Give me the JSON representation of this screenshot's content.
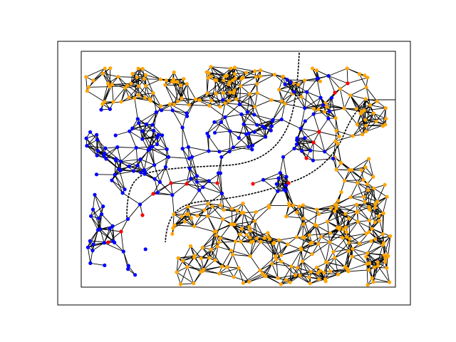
{
  "figure": {
    "colors": {
      "background": "#ffffff",
      "frame": "#000000",
      "edges": "#000000",
      "node_free": "#ffa500",
      "node_path": "#0000ff",
      "node_highlight": "#ff0000",
      "corridor_border": "#000000"
    },
    "legend": "none",
    "axes_visible": false,
    "node_groups": [
      {
        "name": "orange",
        "color_key": "node_free"
      },
      {
        "name": "blue",
        "color_key": "node_path"
      },
      {
        "name": "red",
        "color_key": "node_highlight"
      }
    ]
  }
}
